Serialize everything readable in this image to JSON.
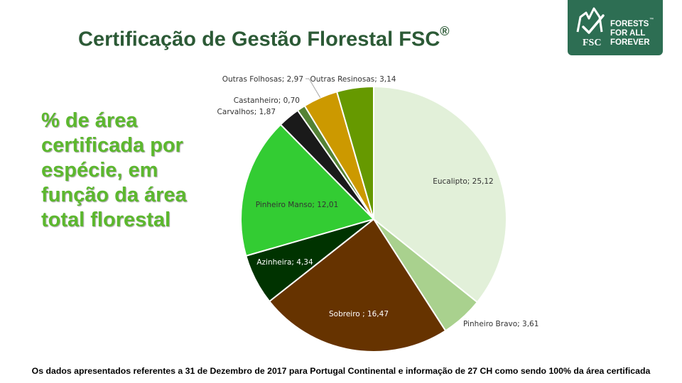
{
  "title": {
    "text": "Certificação de Gestão Florestal FSC",
    "mark": "®"
  },
  "logo": {
    "lines": [
      "FORESTS",
      "FOR ALL",
      "FOREVER"
    ],
    "tm": "™",
    "brand": "FSC",
    "background": "#2d6e53"
  },
  "side_text": {
    "lines": [
      "% de área",
      "certificada por",
      "espécie, em",
      "função da área",
      "total florestal"
    ],
    "color": "#5cb82e"
  },
  "footer": {
    "text": "Os dados apresentados referentes a 31 de Dezembro de 2017 para Portugal Continental e informação de 27 CH como sendo 100%  da área certificada"
  },
  "chart_data": {
    "type": "pie",
    "title": "",
    "slices": [
      {
        "name": "Eucalipto",
        "value": 25.12,
        "label": "Eucalipto; 25,12",
        "color": "#e2f0d9"
      },
      {
        "name": "Pinheiro Bravo",
        "value": 3.61,
        "label": "Pinheiro Bravo; 3,61",
        "color": "#a9d18e"
      },
      {
        "name": "Sobreiro",
        "value": 16.47,
        "label": "Sobreiro ; 16,47",
        "color": "#663300"
      },
      {
        "name": "Azinheira",
        "value": 4.34,
        "label": "Azinheira; 4,34",
        "color": "#003300"
      },
      {
        "name": "Pinheiro Manso",
        "value": 12.01,
        "label": "Pinheiro Manso; 12,01",
        "color": "#33cc33"
      },
      {
        "name": "Carvalhos",
        "value": 1.87,
        "label": "Carvalhos; 1,87",
        "color": "#1a1a1a"
      },
      {
        "name": "Castanheiro",
        "value": 0.7,
        "label": "Castanheiro; 0,70",
        "color": "#548235"
      },
      {
        "name": "Outras Folhosas",
        "value": 2.97,
        "label": "Outras Folhosas; 2,97",
        "color": "#cc9900"
      },
      {
        "name": "Outras Resinosas",
        "value": 3.14,
        "label": "Outras Resinosas; 3,14",
        "color": "#669900"
      }
    ],
    "legend": "none",
    "start": "top",
    "direction": "clockwise"
  }
}
